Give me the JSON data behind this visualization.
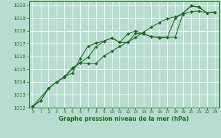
{
  "title": "Graphe pression niveau de la mer (hPa)",
  "bg_color": "#b8ddd0",
  "grid_color": "#ffffff",
  "line_color": "#1a6b1a",
  "xlim": [
    -0.5,
    23.5
  ],
  "ylim": [
    1012,
    1020.3
  ],
  "xticks": [
    0,
    1,
    2,
    3,
    4,
    5,
    6,
    7,
    8,
    9,
    10,
    11,
    12,
    13,
    14,
    15,
    16,
    17,
    18,
    19,
    20,
    21,
    22,
    23
  ],
  "yticks": [
    1012,
    1013,
    1014,
    1015,
    1016,
    1017,
    1018,
    1019,
    1020
  ],
  "series1_x": [
    0,
    1,
    2,
    3,
    4,
    5,
    6,
    7,
    8,
    9,
    10,
    11,
    12,
    13,
    14,
    15,
    16,
    17,
    18,
    19,
    20,
    21,
    22,
    23
  ],
  "series1_y": [
    1012.1,
    1012.55,
    1013.5,
    1014.0,
    1014.4,
    1014.7,
    1015.85,
    1016.8,
    1017.05,
    1017.2,
    1017.45,
    1017.1,
    1017.1,
    1017.8,
    1017.75,
    1017.55,
    1017.45,
    1017.5,
    1017.5,
    1019.4,
    1019.95,
    1019.85,
    1019.4,
    1019.45
  ],
  "series2_x": [
    0,
    1,
    2,
    3,
    4,
    5,
    6,
    7,
    8,
    9,
    10,
    11,
    12,
    13,
    14,
    15,
    16,
    17,
    18,
    19,
    20,
    21,
    22,
    23
  ],
  "series2_y": [
    1012.1,
    1012.55,
    1013.5,
    1014.0,
    1014.4,
    1015.1,
    1015.5,
    1015.45,
    1015.45,
    1016.05,
    1016.4,
    1016.8,
    1017.1,
    1017.5,
    1017.9,
    1018.3,
    1018.65,
    1018.95,
    1019.1,
    1019.3,
    1019.5,
    1019.55,
    1019.4,
    1019.45
  ],
  "series3_x": [
    0,
    2,
    3,
    4,
    5,
    6,
    7,
    8,
    9,
    10,
    11,
    12,
    13,
    14,
    15,
    16,
    17,
    18,
    19,
    20,
    21,
    22,
    23
  ],
  "series3_y": [
    1012.1,
    1013.5,
    1014.0,
    1014.35,
    1015.05,
    1015.5,
    1015.95,
    1016.75,
    1017.2,
    1017.45,
    1017.1,
    1017.75,
    1018.0,
    1017.75,
    1017.55,
    1017.5,
    1017.5,
    1019.0,
    1019.4,
    1019.95,
    1019.85,
    1019.4,
    1019.45
  ]
}
